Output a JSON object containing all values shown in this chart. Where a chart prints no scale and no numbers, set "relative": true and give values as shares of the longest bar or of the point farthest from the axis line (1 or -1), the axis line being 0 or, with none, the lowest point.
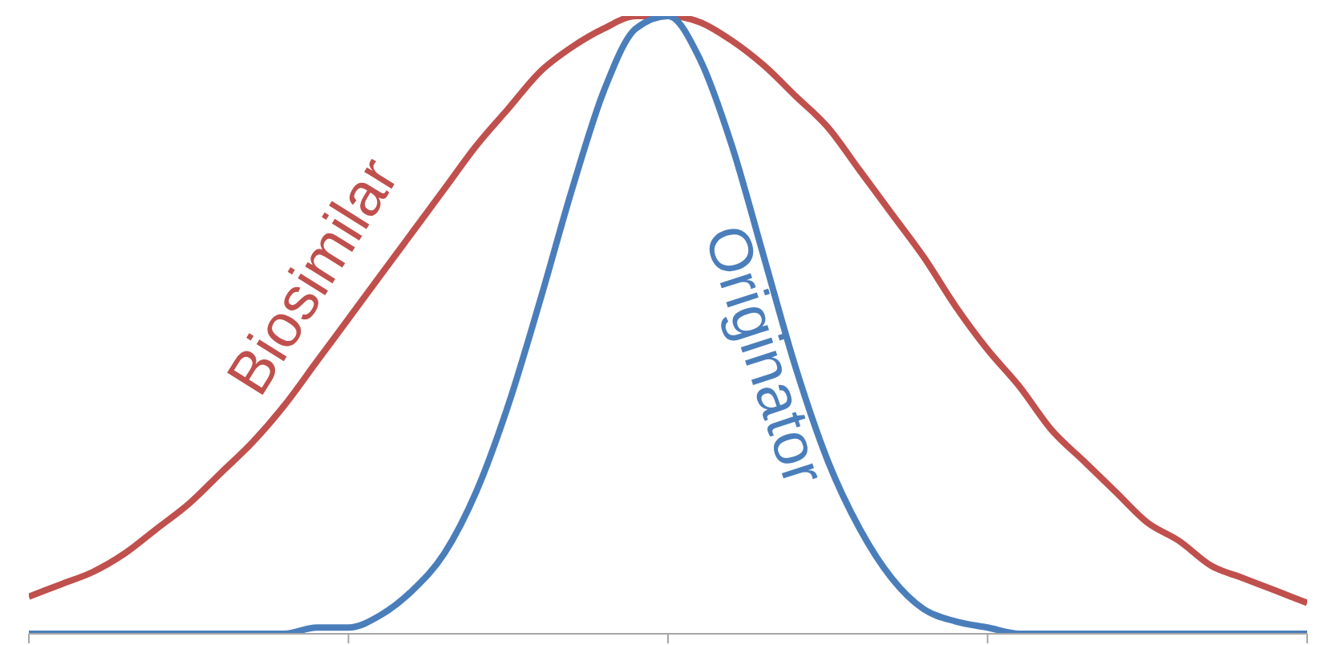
{
  "chart_data": {
    "type": "line",
    "relative": true,
    "categories": [
      null,
      null,
      null,
      null,
      null,
      null,
      null,
      null,
      null,
      null,
      null,
      null,
      null,
      null,
      null,
      null,
      null,
      null,
      null,
      null,
      null,
      null,
      null,
      null,
      null,
      null,
      null,
      null,
      null,
      null,
      null,
      null,
      null,
      null,
      null,
      null,
      null,
      null,
      null,
      null,
      null
    ],
    "series": [
      {
        "name": "Biosimilar",
        "color": "#c0504d",
        "values": [
          0.06,
          0.08,
          0.1,
          0.13,
          0.17,
          0.21,
          0.26,
          0.31,
          0.37,
          0.44,
          0.51,
          0.58,
          0.65,
          0.72,
          0.79,
          0.85,
          0.91,
          0.95,
          0.98,
          1,
          1,
          0.99,
          0.96,
          0.92,
          0.87,
          0.82,
          0.75,
          0.68,
          0.61,
          0.53,
          0.46,
          0.4,
          0.33,
          0.28,
          0.23,
          0.18,
          0.15,
          0.11,
          0.09,
          0.07,
          0.05
        ]
      },
      {
        "name": "Originator",
        "color": "#4a7ebb",
        "values": [
          0,
          0,
          0,
          0,
          0,
          0,
          0,
          0,
          0,
          0.01,
          0.01,
          0.03,
          0.07,
          0.13,
          0.23,
          0.37,
          0.54,
          0.72,
          0.88,
          0.98,
          1,
          0.93,
          0.79,
          0.61,
          0.43,
          0.28,
          0.17,
          0.09,
          0.04,
          0.02,
          0.01,
          0,
          0,
          0,
          0,
          0,
          0,
          0,
          0,
          0,
          0
        ]
      }
    ],
    "legend": false,
    "grid": false,
    "marker": "none",
    "line_style": "solid"
  }
}
